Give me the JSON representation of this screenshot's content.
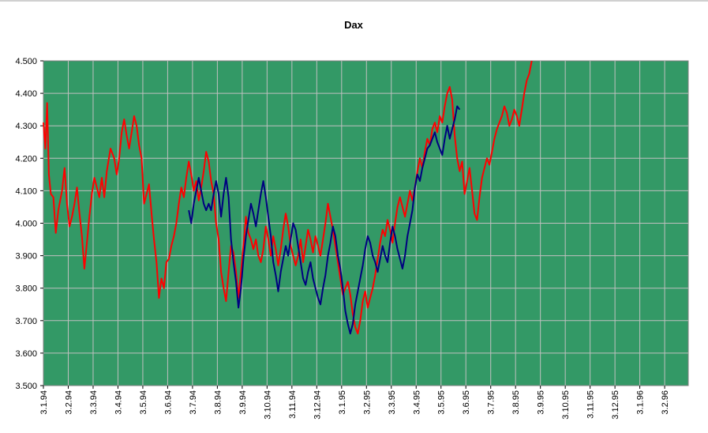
{
  "chart_data": {
    "type": "line",
    "title": "Dax",
    "xlabel": "",
    "ylabel": "",
    "ylim": [
      3500,
      4500
    ],
    "y_ticks": [
      "3.500",
      "3.600",
      "3.700",
      "3.800",
      "3.900",
      "4.000",
      "4.100",
      "4.200",
      "4.300",
      "4.400",
      "4.500"
    ],
    "x_tick_labels": [
      "3.1.94",
      "3.2.94",
      "3.3.94",
      "3.4.94",
      "3.5.94",
      "3.6.94",
      "3.7.94",
      "3.8.94",
      "3.9.94",
      "3.10.94",
      "3.11.94",
      "3.12.94",
      "3.1.95",
      "3.2.95",
      "3.3.95",
      "3.4.95",
      "3.5.95",
      "3.6.95",
      "3.7.95",
      "3.8.95",
      "3.9.95",
      "3.10.95",
      "3.11.95",
      "3.12.95",
      "3.1.96",
      "3.2.96"
    ],
    "plot_background": "#339966",
    "grid": true,
    "grid_color": "#c0c0c0",
    "series": [
      {
        "color": "#ff0000",
        "x_units": "months since 3.1.94",
        "points": [
          [
            0.0,
            4310
          ],
          [
            0.08,
            4230
          ],
          [
            0.15,
            4370
          ],
          [
            0.22,
            4150
          ],
          [
            0.3,
            4090
          ],
          [
            0.4,
            4080
          ],
          [
            0.5,
            3970
          ],
          [
            0.6,
            4040
          ],
          [
            0.75,
            4100
          ],
          [
            0.85,
            4170
          ],
          [
            0.95,
            4060
          ],
          [
            1.05,
            3990
          ],
          [
            1.15,
            4020
          ],
          [
            1.25,
            4060
          ],
          [
            1.35,
            4110
          ],
          [
            1.45,
            4030
          ],
          [
            1.55,
            3960
          ],
          [
            1.65,
            3860
          ],
          [
            1.75,
            3940
          ],
          [
            1.85,
            4020
          ],
          [
            1.95,
            4090
          ],
          [
            2.05,
            4140
          ],
          [
            2.15,
            4110
          ],
          [
            2.25,
            4080
          ],
          [
            2.35,
            4140
          ],
          [
            2.45,
            4080
          ],
          [
            2.55,
            4160
          ],
          [
            2.7,
            4230
          ],
          [
            2.85,
            4200
          ],
          [
            2.95,
            4150
          ],
          [
            3.05,
            4200
          ],
          [
            3.15,
            4280
          ],
          [
            3.25,
            4320
          ],
          [
            3.35,
            4270
          ],
          [
            3.45,
            4230
          ],
          [
            3.55,
            4280
          ],
          [
            3.65,
            4330
          ],
          [
            3.75,
            4300
          ],
          [
            3.85,
            4240
          ],
          [
            3.95,
            4200
          ],
          [
            4.05,
            4060
          ],
          [
            4.15,
            4090
          ],
          [
            4.25,
            4120
          ],
          [
            4.35,
            4030
          ],
          [
            4.45,
            3950
          ],
          [
            4.55,
            3880
          ],
          [
            4.65,
            3770
          ],
          [
            4.75,
            3830
          ],
          [
            4.85,
            3800
          ],
          [
            4.95,
            3880
          ],
          [
            5.05,
            3890
          ],
          [
            5.15,
            3930
          ],
          [
            5.25,
            3960
          ],
          [
            5.35,
            4000
          ],
          [
            5.45,
            4060
          ],
          [
            5.55,
            4110
          ],
          [
            5.65,
            4080
          ],
          [
            5.75,
            4140
          ],
          [
            5.85,
            4190
          ],
          [
            5.95,
            4150
          ],
          [
            6.05,
            4100
          ],
          [
            6.15,
            4130
          ],
          [
            6.25,
            4070
          ],
          [
            6.35,
            4110
          ],
          [
            6.45,
            4160
          ],
          [
            6.55,
            4220
          ],
          [
            6.65,
            4190
          ],
          [
            6.75,
            4130
          ],
          [
            6.85,
            4090
          ],
          [
            6.95,
            4000
          ],
          [
            7.05,
            3950
          ],
          [
            7.15,
            3850
          ],
          [
            7.25,
            3800
          ],
          [
            7.35,
            3760
          ],
          [
            7.45,
            3850
          ],
          [
            7.55,
            3930
          ],
          [
            7.65,
            3910
          ],
          [
            7.75,
            3850
          ],
          [
            7.85,
            3770
          ],
          [
            7.95,
            3850
          ],
          [
            8.05,
            3930
          ],
          [
            8.15,
            4020
          ],
          [
            8.25,
            3970
          ],
          [
            8.35,
            3950
          ],
          [
            8.45,
            3920
          ],
          [
            8.55,
            3950
          ],
          [
            8.65,
            3900
          ],
          [
            8.75,
            3880
          ],
          [
            8.85,
            3920
          ],
          [
            8.95,
            3990
          ],
          [
            9.05,
            3950
          ],
          [
            9.15,
            3900
          ],
          [
            9.25,
            3960
          ],
          [
            9.35,
            3920
          ],
          [
            9.45,
            3870
          ],
          [
            9.55,
            3920
          ],
          [
            9.65,
            3980
          ],
          [
            9.75,
            4030
          ],
          [
            9.85,
            3990
          ],
          [
            9.95,
            3930
          ],
          [
            10.05,
            3900
          ],
          [
            10.15,
            3870
          ],
          [
            10.25,
            3900
          ],
          [
            10.35,
            3950
          ],
          [
            10.45,
            3880
          ],
          [
            10.55,
            3930
          ],
          [
            10.65,
            3980
          ],
          [
            10.75,
            3950
          ],
          [
            10.85,
            3910
          ],
          [
            10.95,
            3960
          ],
          [
            11.05,
            3930
          ],
          [
            11.15,
            3900
          ],
          [
            11.25,
            3950
          ],
          [
            11.35,
            4000
          ],
          [
            11.45,
            4060
          ],
          [
            11.55,
            4020
          ],
          [
            11.65,
            3980
          ],
          [
            11.75,
            3930
          ],
          [
            11.85,
            3880
          ],
          [
            11.95,
            3830
          ],
          [
            12.05,
            3780
          ],
          [
            12.15,
            3800
          ],
          [
            12.25,
            3820
          ],
          [
            12.35,
            3780
          ],
          [
            12.45,
            3720
          ],
          [
            12.55,
            3680
          ],
          [
            12.65,
            3660
          ],
          [
            12.75,
            3700
          ],
          [
            12.85,
            3760
          ],
          [
            12.95,
            3790
          ],
          [
            13.05,
            3740
          ],
          [
            13.15,
            3770
          ],
          [
            13.25,
            3800
          ],
          [
            13.35,
            3840
          ],
          [
            13.45,
            3890
          ],
          [
            13.55,
            3940
          ],
          [
            13.65,
            3980
          ],
          [
            13.75,
            3960
          ],
          [
            13.85,
            4010
          ],
          [
            13.95,
            3980
          ],
          [
            14.05,
            3940
          ],
          [
            14.15,
            4000
          ],
          [
            14.25,
            4050
          ],
          [
            14.35,
            4080
          ],
          [
            14.45,
            4050
          ],
          [
            14.55,
            4020
          ],
          [
            14.65,
            4060
          ],
          [
            14.75,
            4100
          ],
          [
            14.85,
            4070
          ],
          [
            14.95,
            4110
          ],
          [
            15.05,
            4160
          ],
          [
            15.15,
            4200
          ],
          [
            15.25,
            4170
          ],
          [
            15.35,
            4220
          ],
          [
            15.45,
            4260
          ],
          [
            15.55,
            4240
          ],
          [
            15.65,
            4290
          ],
          [
            15.75,
            4310
          ],
          [
            15.85,
            4280
          ],
          [
            15.95,
            4330
          ],
          [
            16.05,
            4310
          ],
          [
            16.15,
            4360
          ],
          [
            16.25,
            4400
          ],
          [
            16.35,
            4420
          ],
          [
            16.45,
            4380
          ],
          [
            16.55,
            4270
          ],
          [
            16.65,
            4200
          ],
          [
            16.75,
            4160
          ],
          [
            16.85,
            4190
          ],
          [
            16.95,
            4090
          ],
          [
            17.05,
            4130
          ],
          [
            17.15,
            4170
          ],
          [
            17.25,
            4100
          ],
          [
            17.35,
            4030
          ],
          [
            17.45,
            4010
          ],
          [
            17.55,
            4080
          ],
          [
            17.65,
            4140
          ],
          [
            17.75,
            4170
          ],
          [
            17.85,
            4200
          ],
          [
            17.95,
            4180
          ],
          [
            18.05,
            4220
          ],
          [
            18.15,
            4260
          ],
          [
            18.25,
            4290
          ],
          [
            18.35,
            4310
          ],
          [
            18.45,
            4330
          ],
          [
            18.55,
            4360
          ],
          [
            18.65,
            4340
          ],
          [
            18.75,
            4300
          ],
          [
            18.85,
            4320
          ],
          [
            18.95,
            4350
          ],
          [
            19.05,
            4330
          ],
          [
            19.15,
            4300
          ],
          [
            19.25,
            4350
          ],
          [
            19.35,
            4400
          ],
          [
            19.45,
            4440
          ],
          [
            19.55,
            4460
          ],
          [
            19.65,
            4500
          ]
        ]
      },
      {
        "color": "#000080",
        "x_units": "months since 3.1.94",
        "points": [
          [
            5.85,
            4040
          ],
          [
            5.95,
            4000
          ],
          [
            6.05,
            4060
          ],
          [
            6.15,
            4100
          ],
          [
            6.25,
            4140
          ],
          [
            6.35,
            4100
          ],
          [
            6.45,
            4060
          ],
          [
            6.55,
            4040
          ],
          [
            6.65,
            4060
          ],
          [
            6.75,
            4040
          ],
          [
            6.85,
            4090
          ],
          [
            6.95,
            4130
          ],
          [
            7.05,
            4090
          ],
          [
            7.15,
            4020
          ],
          [
            7.25,
            4090
          ],
          [
            7.35,
            4140
          ],
          [
            7.45,
            4080
          ],
          [
            7.55,
            3950
          ],
          [
            7.65,
            3880
          ],
          [
            7.75,
            3820
          ],
          [
            7.85,
            3740
          ],
          [
            7.95,
            3800
          ],
          [
            8.05,
            3890
          ],
          [
            8.15,
            3960
          ],
          [
            8.25,
            4010
          ],
          [
            8.35,
            4060
          ],
          [
            8.45,
            4030
          ],
          [
            8.55,
            3990
          ],
          [
            8.65,
            4040
          ],
          [
            8.75,
            4090
          ],
          [
            8.85,
            4130
          ],
          [
            8.95,
            4080
          ],
          [
            9.05,
            4020
          ],
          [
            9.15,
            3960
          ],
          [
            9.25,
            3880
          ],
          [
            9.35,
            3840
          ],
          [
            9.45,
            3790
          ],
          [
            9.55,
            3850
          ],
          [
            9.65,
            3890
          ],
          [
            9.75,
            3930
          ],
          [
            9.85,
            3900
          ],
          [
            9.95,
            3950
          ],
          [
            10.05,
            4000
          ],
          [
            10.15,
            3980
          ],
          [
            10.25,
            3930
          ],
          [
            10.35,
            3880
          ],
          [
            10.45,
            3830
          ],
          [
            10.55,
            3810
          ],
          [
            10.65,
            3850
          ],
          [
            10.75,
            3880
          ],
          [
            10.85,
            3830
          ],
          [
            10.95,
            3800
          ],
          [
            11.05,
            3770
          ],
          [
            11.15,
            3750
          ],
          [
            11.25,
            3800
          ],
          [
            11.35,
            3840
          ],
          [
            11.45,
            3900
          ],
          [
            11.55,
            3940
          ],
          [
            11.65,
            3990
          ],
          [
            11.75,
            3960
          ],
          [
            11.85,
            3900
          ],
          [
            11.95,
            3860
          ],
          [
            12.05,
            3800
          ],
          [
            12.15,
            3730
          ],
          [
            12.25,
            3690
          ],
          [
            12.35,
            3660
          ],
          [
            12.45,
            3690
          ],
          [
            12.55,
            3750
          ],
          [
            12.65,
            3790
          ],
          [
            12.75,
            3830
          ],
          [
            12.85,
            3870
          ],
          [
            12.95,
            3920
          ],
          [
            13.05,
            3960
          ],
          [
            13.15,
            3940
          ],
          [
            13.25,
            3900
          ],
          [
            13.35,
            3880
          ],
          [
            13.45,
            3850
          ],
          [
            13.55,
            3890
          ],
          [
            13.65,
            3930
          ],
          [
            13.75,
            3900
          ],
          [
            13.85,
            3880
          ],
          [
            13.95,
            3940
          ],
          [
            14.05,
            3990
          ],
          [
            14.15,
            3960
          ],
          [
            14.25,
            3920
          ],
          [
            14.35,
            3890
          ],
          [
            14.45,
            3860
          ],
          [
            14.55,
            3900
          ],
          [
            14.65,
            3960
          ],
          [
            14.75,
            4000
          ],
          [
            14.85,
            4040
          ],
          [
            14.95,
            4110
          ],
          [
            15.05,
            4150
          ],
          [
            15.15,
            4130
          ],
          [
            15.25,
            4170
          ],
          [
            15.35,
            4200
          ],
          [
            15.45,
            4230
          ],
          [
            15.55,
            4240
          ],
          [
            15.65,
            4260
          ],
          [
            15.75,
            4280
          ],
          [
            15.85,
            4250
          ],
          [
            15.95,
            4230
          ],
          [
            16.05,
            4210
          ],
          [
            16.15,
            4260
          ],
          [
            16.25,
            4300
          ],
          [
            16.35,
            4260
          ],
          [
            16.45,
            4290
          ],
          [
            16.55,
            4320
          ],
          [
            16.65,
            4360
          ],
          [
            16.75,
            4350
          ]
        ]
      }
    ]
  }
}
